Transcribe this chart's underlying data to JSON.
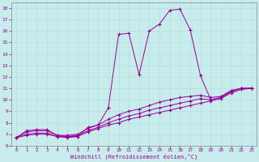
{
  "xlabel": "Windchill (Refroidissement éolien,°C)",
  "bg_color": "#c8ecec",
  "line_color": "#990099",
  "xlim": [
    -0.5,
    23.5
  ],
  "ylim": [
    6,
    18.5
  ],
  "yticks": [
    6,
    7,
    8,
    9,
    10,
    11,
    12,
    13,
    14,
    15,
    16,
    17,
    18
  ],
  "xticks": [
    0,
    1,
    2,
    3,
    4,
    5,
    6,
    7,
    8,
    9,
    10,
    11,
    12,
    13,
    14,
    15,
    16,
    17,
    18,
    19,
    20,
    21,
    22,
    23
  ],
  "curve_main": [
    [
      0,
      6.7
    ],
    [
      1,
      7.3
    ],
    [
      2,
      7.4
    ],
    [
      3,
      7.4
    ],
    [
      4,
      6.9
    ],
    [
      5,
      6.8
    ],
    [
      6,
      6.8
    ],
    [
      7,
      7.6
    ],
    [
      8,
      7.8
    ],
    [
      9,
      9.3
    ],
    [
      10,
      15.7
    ],
    [
      11,
      15.8
    ],
    [
      12,
      12.2
    ],
    [
      13,
      16.0
    ],
    [
      14,
      16.6
    ],
    [
      15,
      17.8
    ],
    [
      16,
      17.9
    ],
    [
      17,
      16.1
    ],
    [
      18,
      12.1
    ],
    [
      19,
      10.0
    ],
    [
      20,
      10.2
    ],
    [
      21,
      10.8
    ],
    [
      22,
      11.0
    ],
    [
      23,
      11.0
    ]
  ],
  "curve2": [
    [
      0,
      6.7
    ],
    [
      1,
      7.2
    ],
    [
      2,
      7.3
    ],
    [
      3,
      7.3
    ],
    [
      4,
      6.9
    ],
    [
      5,
      6.9
    ],
    [
      6,
      7.0
    ],
    [
      7,
      7.5
    ],
    [
      8,
      7.8
    ],
    [
      9,
      8.3
    ],
    [
      10,
      8.7
    ],
    [
      11,
      9.0
    ],
    [
      12,
      9.2
    ],
    [
      13,
      9.5
    ],
    [
      14,
      9.8
    ],
    [
      15,
      10.0
    ],
    [
      16,
      10.2
    ],
    [
      17,
      10.3
    ],
    [
      18,
      10.4
    ],
    [
      19,
      10.2
    ],
    [
      20,
      10.3
    ],
    [
      21,
      10.8
    ],
    [
      22,
      11.0
    ],
    [
      23,
      11.0
    ]
  ],
  "curve3": [
    [
      0,
      6.7
    ],
    [
      1,
      7.0
    ],
    [
      2,
      7.1
    ],
    [
      3,
      7.1
    ],
    [
      4,
      6.8
    ],
    [
      5,
      6.8
    ],
    [
      6,
      6.9
    ],
    [
      7,
      7.3
    ],
    [
      8,
      7.6
    ],
    [
      9,
      8.0
    ],
    [
      10,
      8.3
    ],
    [
      11,
      8.6
    ],
    [
      12,
      8.8
    ],
    [
      13,
      9.1
    ],
    [
      14,
      9.3
    ],
    [
      15,
      9.5
    ],
    [
      16,
      9.7
    ],
    [
      17,
      9.9
    ],
    [
      18,
      10.1
    ],
    [
      19,
      10.0
    ],
    [
      20,
      10.2
    ],
    [
      21,
      10.7
    ],
    [
      22,
      11.0
    ],
    [
      23,
      11.0
    ]
  ],
  "curve4": [
    [
      0,
      6.7
    ],
    [
      1,
      6.9
    ],
    [
      2,
      7.0
    ],
    [
      3,
      7.0
    ],
    [
      4,
      6.8
    ],
    [
      5,
      6.7
    ],
    [
      6,
      6.8
    ],
    [
      7,
      7.2
    ],
    [
      8,
      7.5
    ],
    [
      9,
      7.8
    ],
    [
      10,
      8.0
    ],
    [
      11,
      8.3
    ],
    [
      12,
      8.5
    ],
    [
      13,
      8.7
    ],
    [
      14,
      8.9
    ],
    [
      15,
      9.1
    ],
    [
      16,
      9.3
    ],
    [
      17,
      9.5
    ],
    [
      18,
      9.7
    ],
    [
      19,
      9.9
    ],
    [
      20,
      10.1
    ],
    [
      21,
      10.6
    ],
    [
      22,
      10.9
    ],
    [
      23,
      11.0
    ]
  ]
}
